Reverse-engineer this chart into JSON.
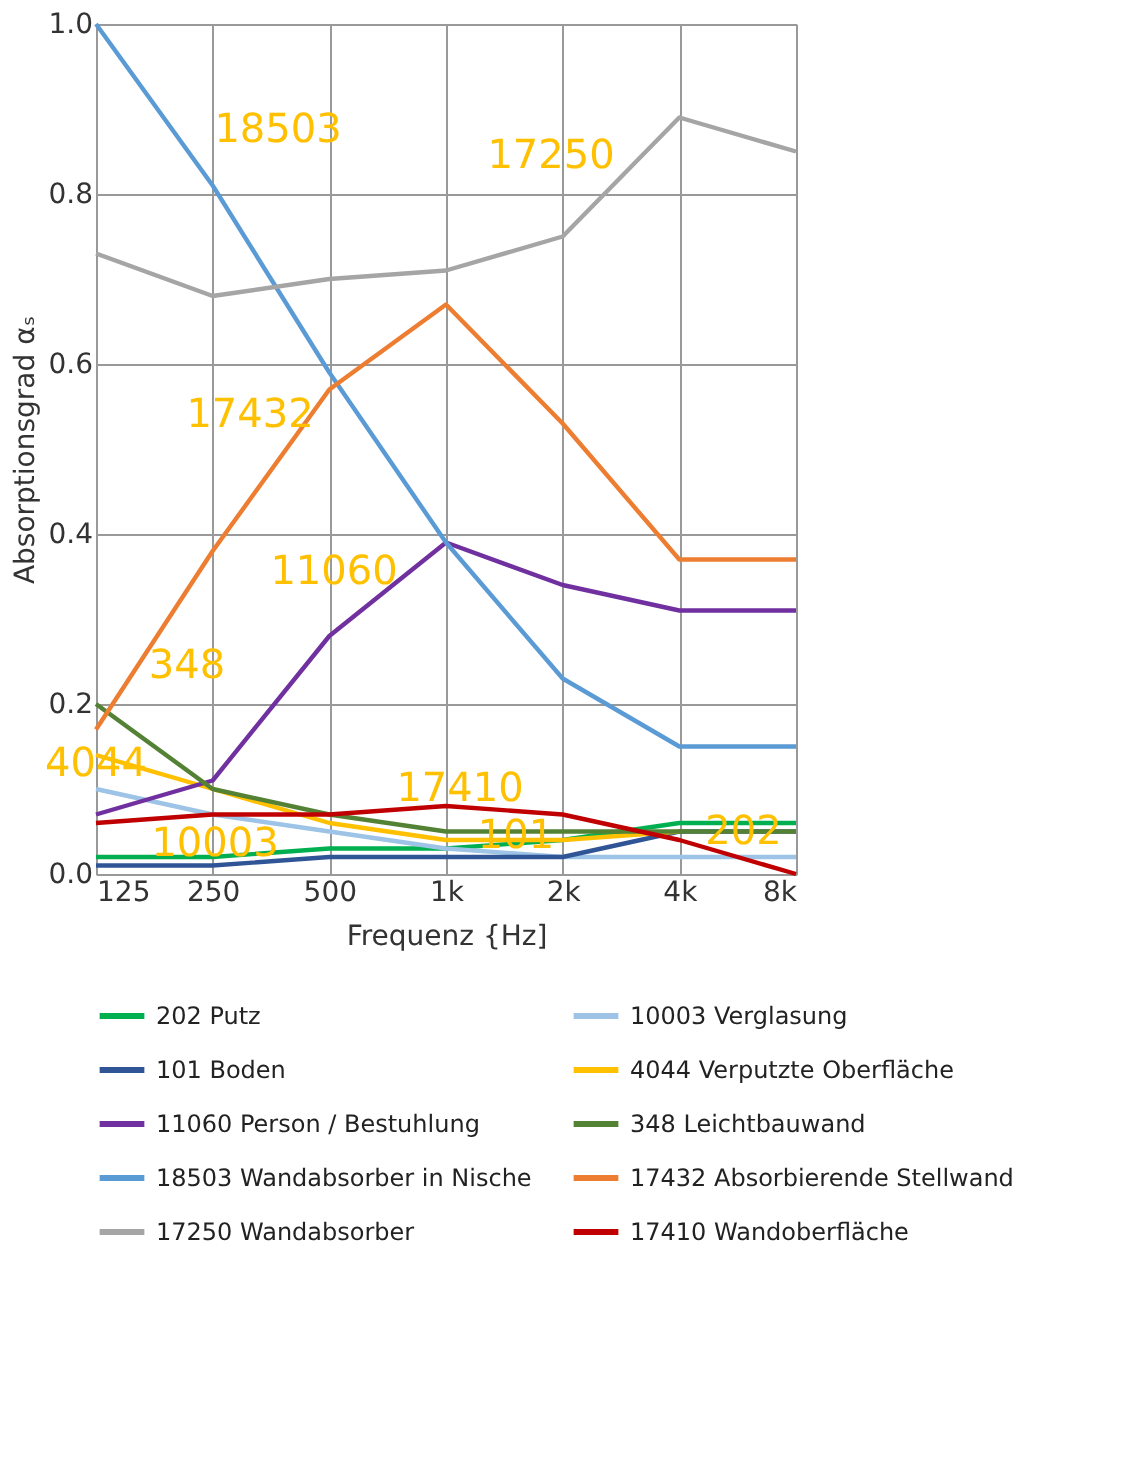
{
  "chart_data": {
    "type": "line",
    "xlabel": "Frequenz {Hz]",
    "ylabel": "Absorptionsgrad αₛ",
    "categories": [
      "125",
      "250",
      "500",
      "1k",
      "2k",
      "4k",
      "8k"
    ],
    "ylim": [
      0,
      1
    ],
    "yticks": [
      {
        "value": 0,
        "label": "0.0"
      },
      0.2,
      0.4,
      0.6,
      0.8,
      {
        "value": 1,
        "label": "1.0"
      }
    ],
    "grid": true,
    "legend": "bottom",
    "marker": "none",
    "line_style": "solid",
    "series": [
      {
        "name": "202 Putz",
        "color": "#00b050",
        "values": [
          0.02,
          0.02,
          0.03,
          0.03,
          0.04,
          0.06,
          0.06
        ]
      },
      {
        "name": "10003 Verglasung",
        "color": "#9dc3e6",
        "values": [
          0.1,
          0.07,
          0.05,
          0.03,
          0.02,
          0.02,
          0.02
        ]
      },
      {
        "name": "101 Boden",
        "color": "#2f5597",
        "values": [
          0.01,
          0.01,
          0.02,
          0.02,
          0.02,
          0.05,
          0.05
        ]
      },
      {
        "name": "4044 Verputzte Oberfläche",
        "color": "#ffc000",
        "values": [
          0.14,
          0.1,
          0.06,
          0.04,
          0.04,
          0.05,
          null
        ]
      },
      {
        "name": "11060 Person / Bestuhlung",
        "color": "#7030a0",
        "values": [
          0.07,
          0.11,
          0.28,
          0.39,
          0.34,
          0.31,
          0.31
        ]
      },
      {
        "name": "348 Leichtbauwand",
        "color": "#548235",
        "values": [
          0.2,
          0.1,
          0.07,
          0.05,
          0.05,
          0.05,
          0.05
        ]
      },
      {
        "name": "18503 Wandabsorber in Nische",
        "color": "#5b9bd5",
        "values": [
          1.0,
          0.81,
          0.59,
          0.39,
          0.23,
          0.15,
          0.15
        ]
      },
      {
        "name": "17432 Absorbierende Stellwand",
        "color": "#ed7d31",
        "values": [
          0.17,
          0.38,
          0.57,
          0.67,
          0.53,
          0.37,
          0.37
        ]
      },
      {
        "name": "17250 Wandabsorber",
        "color": "#a5a5a5",
        "values": [
          0.73,
          0.68,
          0.7,
          0.71,
          0.75,
          0.89,
          0.85
        ]
      },
      {
        "name": "17410 Wandoberfläche",
        "color": "#c00000",
        "values": [
          0.06,
          0.07,
          0.07,
          0.08,
          0.07,
          0.04,
          0.0
        ]
      }
    ],
    "annotations": [
      "18503",
      "17250",
      "17432",
      "11060",
      "348",
      "4044",
      "10003",
      "17410",
      "101",
      "202"
    ]
  }
}
